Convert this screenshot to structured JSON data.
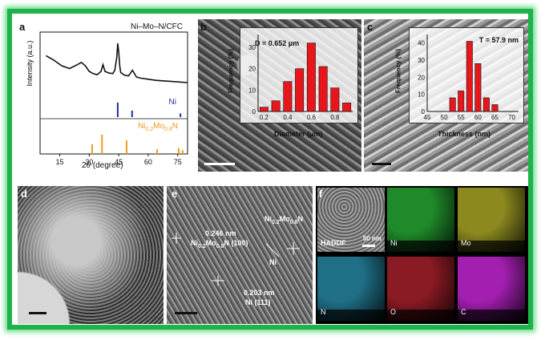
{
  "panel_a": {
    "label": "a",
    "title": "Ni–Mo–N/CFC",
    "ylabel": "Intensity (a.u.)",
    "xlabel_pre": "2",
    "xlabel_theta": "θ",
    "xlabel_post": " (degree)",
    "ref1": "Ni",
    "ref2_main": "Ni",
    "ref2_sub1": "0.2",
    "ref2_mid": "Mo",
    "ref2_sub2": "0.8",
    "ref2_end": "N",
    "xticks": [
      "15",
      "30",
      "45",
      "60",
      "75"
    ],
    "colors": {
      "ni": "#1f2e9a",
      "nimon": "#f39a1f"
    }
  },
  "panel_b": {
    "label": "b",
    "mean": "D = 0.652 μm",
    "xlabel": "Diameter (μm)",
    "ylabel": "Frequency (%)",
    "xticks": [
      "0.2",
      "0.4",
      "0.6",
      "0.8"
    ],
    "yticks": [
      "0",
      "10",
      "20",
      "30"
    ]
  },
  "panel_c": {
    "label": "c",
    "mean": "T = 57.9 nm",
    "xlabel": "Thickness (nm)",
    "ylabel": "Frequency (%)",
    "xticks": [
      "45",
      "50",
      "55",
      "60",
      "65",
      "70"
    ],
    "yticks": [
      "0",
      "10",
      "20",
      "30",
      "40"
    ]
  },
  "panel_d": {
    "label": "d"
  },
  "panel_e": {
    "label": "e",
    "d1": "0.246 nm",
    "phase1_a": "Ni",
    "phase1_s1": "0.2",
    "phase1_b": "Mo",
    "phase1_s2": "0.8",
    "phase1_c": "N (100)",
    "phase2_a": "Ni",
    "phase2_s1": "0.2",
    "phase2_b": "Mo",
    "phase2_s2": "0.8",
    "phase2_c": "N",
    "ni": "Ni",
    "d2": "0.203 nm",
    "plane2": "Ni (111)"
  },
  "panel_f": {
    "label": "f",
    "haddf": "HADDF",
    "scale": "50 nm",
    "maps": [
      {
        "name": "Ni",
        "color": "#1f8a2a"
      },
      {
        "name": "Mo",
        "color": "#8c8a1f"
      },
      {
        "name": "N",
        "color": "#1f6f86"
      },
      {
        "name": "O",
        "color": "#8a1a24"
      },
      {
        "name": "C",
        "color": "#a21fb0"
      }
    ]
  },
  "chart_data": [
    {
      "type": "line",
      "title": "Ni–Mo–N/CFC",
      "xlabel": "2θ (degree)",
      "ylabel": "Intensity (a.u.)",
      "xlim": [
        5,
        80
      ],
      "x": [
        8,
        12,
        16,
        20,
        24,
        26,
        28,
        30,
        32,
        34,
        36,
        37,
        38,
        40,
        42,
        43,
        44,
        44.5,
        45,
        45.5,
        46,
        48,
        50,
        52,
        54,
        56,
        60,
        64,
        68,
        72,
        76,
        80
      ],
      "y": [
        0.78,
        0.7,
        0.6,
        0.55,
        0.62,
        0.66,
        0.6,
        0.5,
        0.46,
        0.44,
        0.5,
        0.62,
        0.5,
        0.47,
        0.46,
        0.52,
        0.75,
        1.0,
        0.85,
        0.6,
        0.48,
        0.43,
        0.42,
        0.52,
        0.4,
        0.38,
        0.36,
        0.34,
        0.33,
        0.32,
        0.31,
        0.3
      ],
      "references": [
        {
          "name": "Ni",
          "positions": [
            44.5,
            51.8,
            76.4
          ],
          "heights": [
            1.0,
            0.45,
            0.25
          ]
        },
        {
          "name": "Ni0.2Mo0.8N",
          "positions": [
            31.5,
            36.5,
            49.0,
            64.5,
            75.5,
            77.5
          ],
          "heights": [
            0.5,
            1.0,
            0.7,
            0.25,
            0.3,
            0.2
          ]
        }
      ]
    },
    {
      "type": "bar",
      "title": "D = 0.652 μm",
      "xlabel": "Diameter (μm)",
      "ylabel": "Frequency (%)",
      "x": [
        0.2,
        0.3,
        0.4,
        0.5,
        0.6,
        0.7,
        0.8,
        0.9
      ],
      "values": [
        2,
        5,
        14,
        20,
        32,
        21,
        11,
        4
      ],
      "xlim": [
        0.15,
        0.95
      ],
      "ylim": [
        0,
        36
      ]
    },
    {
      "type": "bar",
      "title": "T = 57.9 nm",
      "xlabel": "Thickness (nm)",
      "ylabel": "Frequency (%)",
      "x": [
        50,
        52.5,
        55,
        57.5,
        60,
        62.5,
        65,
        67.5,
        70
      ],
      "values": [
        0,
        8,
        12,
        41,
        28,
        8,
        4,
        0,
        0
      ],
      "xlim": [
        45,
        72
      ],
      "ylim": [
        0,
        45
      ]
    }
  ]
}
